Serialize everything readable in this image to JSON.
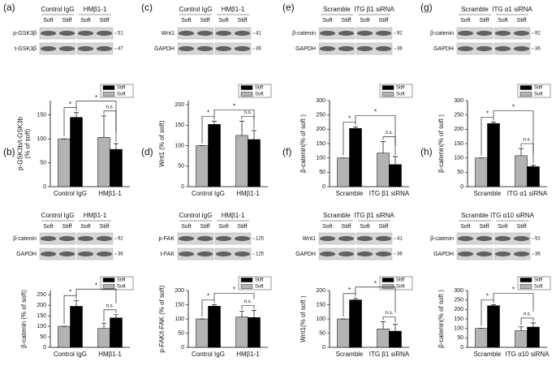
{
  "chart_data": [
    {
      "type": "bar",
      "panel": "(a)",
      "ylabel": [
        "p-GSK3b/t-GSK3b",
        "(% of soft)"
      ],
      "categories": [
        "Control IgG",
        "HMβ1-1"
      ],
      "blot": {
        "groups": [
          "Control IgG",
          "HMβ1-1"
        ],
        "lanes": [
          "Soft",
          "Stiff",
          "Soft",
          "Stiff"
        ],
        "bands": [
          {
            "label": "p-GSK3β",
            "size": "51"
          },
          {
            "label": "t-GSK3β",
            "size": "47"
          }
        ]
      },
      "series": [
        {
          "name": "Soft",
          "color": "#b3b3b3",
          "values": [
            100,
            103
          ],
          "errors": [
            0,
            45
          ]
        },
        {
          "name": "Stiff",
          "color": "#000000",
          "values": [
            145,
            78
          ],
          "errors": [
            10,
            12
          ]
        }
      ],
      "ylim": [
        0,
        180
      ],
      "yticks": [
        0,
        50,
        100,
        150
      ],
      "sig": [
        "*",
        "*",
        "n.s."
      ]
    },
    {
      "type": "bar",
      "panel": "(b)",
      "ylabel": [
        "β-catenin (% of soft)"
      ],
      "categories": [
        "Control IgG",
        "HMβ1-1"
      ],
      "blot": {
        "groups": [
          "Control IgG",
          "HMβ1-1"
        ],
        "lanes": [
          "Soft",
          "Stiff",
          "Soft",
          "Stiff"
        ],
        "bands": [
          {
            "label": "β-catenin",
            "size": "92"
          },
          {
            "label": "GAPDH",
            "size": "36"
          }
        ]
      },
      "series": [
        {
          "name": "Soft",
          "color": "#b3b3b3",
          "values": [
            100,
            90
          ],
          "errors": [
            0,
            25
          ]
        },
        {
          "name": "Stiff",
          "color": "#000000",
          "values": [
            195,
            140
          ],
          "errors": [
            28,
            15
          ]
        }
      ],
      "ylim": [
        0,
        270
      ],
      "yticks": [
        0,
        50,
        100,
        150,
        200,
        250
      ],
      "sig": [
        "*",
        "*",
        "n.s."
      ]
    },
    {
      "type": "bar",
      "panel": "(c)",
      "ylabel": [
        "Wnt1 (% of soft)"
      ],
      "categories": [
        "Control IgG",
        "HMβ1-1"
      ],
      "blot": {
        "groups": [
          "Control IgG",
          "HMβ1-1"
        ],
        "lanes": [
          "Soft",
          "Stiff",
          "Soft",
          "Stiff"
        ],
        "bands": [
          {
            "label": "Wnt1",
            "size": "41"
          },
          {
            "label": "GAPDH",
            "size": "36"
          }
        ]
      },
      "series": [
        {
          "name": "Soft",
          "color": "#b3b3b3",
          "values": [
            100,
            125
          ],
          "errors": [
            0,
            35
          ]
        },
        {
          "name": "Stiff",
          "color": "#000000",
          "values": [
            152,
            115
          ],
          "errors": [
            8,
            22
          ]
        }
      ],
      "ylim": [
        0,
        210
      ],
      "yticks": [
        0,
        50,
        100,
        150,
        200
      ],
      "sig": [
        "*",
        "*",
        "n.s."
      ]
    },
    {
      "type": "bar",
      "panel": "(d)",
      "ylabel": [
        "p-FAK/t-FAK (% of soft)"
      ],
      "categories": [
        "Control IgG",
        "HMβ1-1"
      ],
      "blot": {
        "groups": [
          "Control IgG",
          "HMβ1-1"
        ],
        "lanes": [
          "Soft",
          "Stiff",
          "Soft",
          "Stiff"
        ],
        "bands": [
          {
            "label": "p-FAK",
            "size": "125"
          },
          {
            "label": "t-FAK",
            "size": "125"
          }
        ]
      },
      "series": [
        {
          "name": "Soft",
          "color": "#b3b3b3",
          "values": [
            100,
            107
          ],
          "errors": [
            0,
            20
          ]
        },
        {
          "name": "Stiff",
          "color": "#000000",
          "values": [
            145,
            105
          ],
          "errors": [
            5,
            25
          ]
        }
      ],
      "ylim": [
        0,
        200
      ],
      "yticks": [
        0,
        50,
        100,
        150,
        200
      ],
      "sig": [
        "*",
        "*",
        "n.s."
      ]
    },
    {
      "type": "bar",
      "panel": "(e)",
      "ylabel": [
        "β-catenin(% of soft )"
      ],
      "categories": [
        "Scramble",
        "ITG β1 siRNA"
      ],
      "blot": {
        "groups": [
          "Scramble",
          "ITG β1 siRNA"
        ],
        "lanes": [
          "Soft",
          "Stiff",
          "Soft",
          "Stiff"
        ],
        "bands": [
          {
            "label": "β-catenin",
            "size": "92"
          },
          {
            "label": "GAPDH",
            "size": "36"
          }
        ]
      },
      "series": [
        {
          "name": "Soft",
          "color": "#b3b3b3",
          "values": [
            100,
            117
          ],
          "errors": [
            0,
            40
          ]
        },
        {
          "name": "Stiff",
          "color": "#000000",
          "values": [
            203,
            77
          ],
          "errors": [
            5,
            28
          ]
        }
      ],
      "ylim": [
        0,
        300
      ],
      "yticks": [
        0,
        50,
        100,
        150,
        200,
        250,
        300
      ],
      "sig": [
        "*",
        "*",
        "n.s."
      ]
    },
    {
      "type": "bar",
      "panel": "(f)",
      "ylabel": [
        "Wnt1(% of soft )"
      ],
      "categories": [
        "Scramble",
        "ITG β1 siRNA"
      ],
      "blot": {
        "groups": [
          "Scramble",
          "ITG β1 siRNA"
        ],
        "lanes": [
          "Soft",
          "Stiff",
          "Soft",
          "Stiff"
        ],
        "bands": [
          {
            "label": "Wnt1",
            "size": "41"
          },
          {
            "label": "GAPDH",
            "size": "36"
          }
        ]
      },
      "series": [
        {
          "name": "Soft",
          "color": "#b3b3b3",
          "values": [
            100,
            65
          ],
          "errors": [
            0,
            25
          ]
        },
        {
          "name": "Stiff",
          "color": "#000000",
          "values": [
            167,
            57
          ],
          "errors": [
            5,
            25
          ]
        }
      ],
      "ylim": [
        0,
        200
      ],
      "yticks": [
        0,
        50,
        100,
        150,
        200
      ],
      "sig": [
        "*",
        "*",
        "n.s."
      ]
    },
    {
      "type": "bar",
      "panel": "(g)",
      "ylabel": [
        "β-catenin(% of soft )"
      ],
      "categories": [
        "Scramble",
        "ITG α1 siRNA"
      ],
      "blot": {
        "groups": [
          "Scramble",
          "ITG α1 siRNA"
        ],
        "lanes": [
          "Soft",
          "Stiff",
          "Soft",
          "Stiff"
        ],
        "bands": [
          {
            "label": "β-catenin",
            "size": "92"
          },
          {
            "label": "GAPDH",
            "size": "36"
          }
        ]
      },
      "series": [
        {
          "name": "Soft",
          "color": "#b3b3b3",
          "values": [
            100,
            108
          ],
          "errors": [
            0,
            25
          ]
        },
        {
          "name": "Stiff",
          "color": "#000000",
          "values": [
            220,
            70
          ],
          "errors": [
            5,
            5
          ]
        }
      ],
      "ylim": [
        0,
        300
      ],
      "yticks": [
        0,
        50,
        100,
        150,
        200,
        250,
        300
      ],
      "sig": [
        "*",
        "*",
        "n.s."
      ]
    },
    {
      "type": "bar",
      "panel": "(h)",
      "ylabel": [
        "β-catenin(% of soft )"
      ],
      "categories": [
        "Scramble",
        "ITG α10 siRNA"
      ],
      "blot": {
        "groups": [
          "Scramble",
          "ITG α10 siRNA"
        ],
        "lanes": [
          "Soft",
          "Stiff",
          "Soft",
          "Stiff"
        ],
        "bands": [
          {
            "label": "β-catenin",
            "size": "92"
          },
          {
            "label": "GAPDH",
            "size": "36"
          }
        ]
      },
      "series": [
        {
          "name": "Soft",
          "color": "#b3b3b3",
          "values": [
            100,
            88
          ],
          "errors": [
            0,
            20
          ]
        },
        {
          "name": "Stiff",
          "color": "#000000",
          "values": [
            220,
            107
          ],
          "errors": [
            5,
            22
          ]
        }
      ],
      "ylim": [
        0,
        300
      ],
      "yticks": [
        0,
        50,
        100,
        150,
        200,
        250,
        300
      ],
      "sig": [
        "*",
        "*",
        "n.s."
      ]
    }
  ]
}
